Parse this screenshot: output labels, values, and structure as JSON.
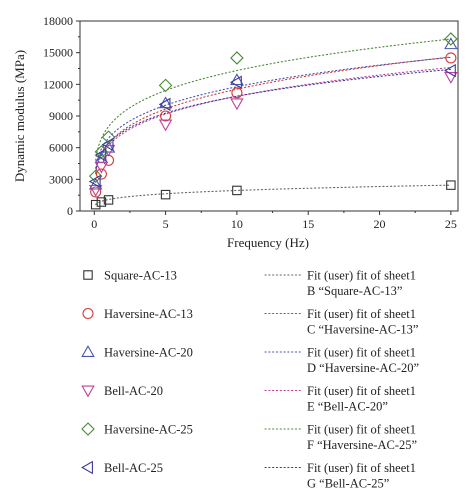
{
  "chart_data": {
    "type": "scatter",
    "xlabel": "Frequency (Hz)",
    "ylabel": "Dynamic modulus (MPa)",
    "xlim": [
      -1,
      25.5
    ],
    "ylim": [
      0,
      18000
    ],
    "x_ticks": [
      0,
      5,
      10,
      15,
      20,
      25
    ],
    "y_ticks": [
      0,
      3000,
      6000,
      9000,
      12000,
      15000,
      18000
    ],
    "grid": false,
    "legend_position": "bottom",
    "x": [
      0.1,
      0.5,
      1,
      5,
      10,
      25
    ],
    "series": [
      {
        "name": "Square-AC-13",
        "marker": "square",
        "color": "#333333",
        "values": [
          600,
          850,
          1050,
          1550,
          1950,
          2450
        ],
        "fit_color": "#666666",
        "fit": {
          "a": 1089,
          "b": 0.252
        },
        "fit_label_1": "Fit (user) fit of sheet1",
        "fit_label_2": "B “Square-AC-13”"
      },
      {
        "name": "Haversine-AC-13",
        "marker": "circle",
        "color": "#d43a3a",
        "values": [
          1800,
          3500,
          4800,
          9000,
          11200,
          14500
        ],
        "fit_color": "#d43a3a",
        "fit": {
          "a": 6400,
          "b": 0.256
        },
        "fit_label_1": "Fit (user) fit of sheet1",
        "fit_label_2": "C “Haversine-AC-13”"
      },
      {
        "name": "Haversine-AC-20",
        "marker": "triangle-up",
        "color": "#4a55b0",
        "values": [
          2500,
          5000,
          6000,
          10200,
          12400,
          15800
        ],
        "fit_color": "#4a55b0",
        "fit": {
          "a": 6900,
          "b": 0.232
        },
        "fit_label_1": "Fit (user) fit of sheet1",
        "fit_label_2": "D “Haversine-AC-20”"
      },
      {
        "name": "Bell-AC-20",
        "marker": "triangle-down",
        "color": "#c0409a",
        "values": [
          2000,
          4200,
          5800,
          8200,
          10200,
          12700
        ],
        "fit_color": "#c0409a",
        "fit": {
          "a": 6200,
          "b": 0.244
        },
        "fit_label_1": "Fit (user) fit of sheet1",
        "fit_label_2": "E “Bell-AC-20”"
      },
      {
        "name": "Haversine-AC-25",
        "marker": "diamond",
        "color": "#4a8a3a",
        "values": [
          3300,
          5600,
          7000,
          11900,
          14500,
          16300
        ],
        "fit_color": "#4a8a3a",
        "fit": {
          "a": 8000,
          "b": 0.221
        },
        "fit_label_1": "Fit (user) fit of sheet1",
        "fit_label_2": "F “Haversine-AC-25”"
      },
      {
        "name": "Bell-AC-25",
        "marker": "triangle-left",
        "color": "#3a3a9a",
        "values": [
          2800,
          5300,
          6300,
          10100,
          12200,
          13300
        ],
        "fit_color": "#3a3a9a",
        "fit": {
          "a": 6400,
          "b": 0.23
        },
        "fit_label_1": "Fit (user) fit of sheet1",
        "fit_label_2": "G “Bell-AC-25”"
      }
    ]
  }
}
